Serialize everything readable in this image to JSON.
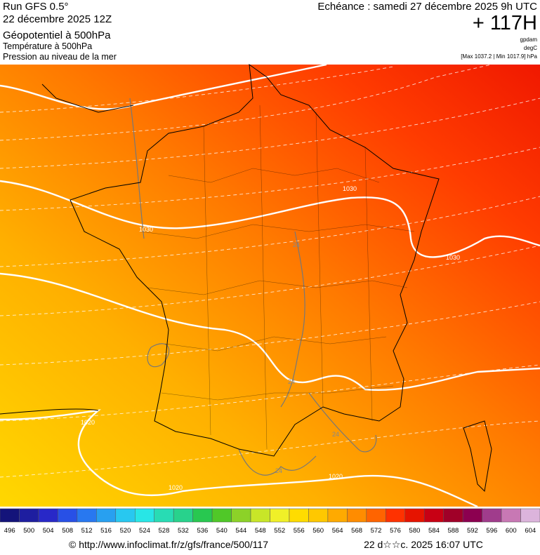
{
  "header": {
    "run": "Run GFS 0.5°",
    "run_date": "22 décembre 2025 12Z",
    "field_1": "Géopotentiel à 500hPa",
    "field_2": "Température à 500hPa",
    "field_3": "Pression au niveau de la mer",
    "valid": "Echéance : samedi 27 décembre 2025 9h UTC",
    "lead": "+ 117H",
    "unit_1": "gpdam",
    "unit_2": "degC",
    "pressure_range": "[Max 1037.2 | Min 1017.9] hPa"
  },
  "map": {
    "contour_labels": [
      "1030",
      "1030",
      "1030",
      "1020",
      "1020",
      "1020",
      "24",
      "24",
      "24",
      "24"
    ]
  },
  "colorbar": {
    "values": [
      496,
      500,
      504,
      508,
      512,
      516,
      520,
      524,
      528,
      532,
      536,
      540,
      544,
      548,
      552,
      556,
      560,
      564,
      568,
      572,
      576,
      580,
      584,
      588,
      592,
      596,
      600,
      604
    ],
    "colors": [
      "#14147a",
      "#1e1ea0",
      "#2828c8",
      "#2850e6",
      "#2878f0",
      "#28a0f0",
      "#28c8f0",
      "#28e6e6",
      "#28dcb4",
      "#28d28c",
      "#28c850",
      "#50c828",
      "#8cd228",
      "#c8e628",
      "#f0f028",
      "#ffdc00",
      "#ffc800",
      "#ffaa00",
      "#ff8c00",
      "#ff6400",
      "#ff3200",
      "#e61400",
      "#c80014",
      "#a00028",
      "#8c0050",
      "#a03c8c",
      "#c878b4",
      "#dcb4dc"
    ]
  },
  "footer": {
    "url": "© http://www.infoclimat.fr/z/gfs/france/500/117",
    "generated": "22 d☆☆c. 2025 16:07 UTC"
  }
}
